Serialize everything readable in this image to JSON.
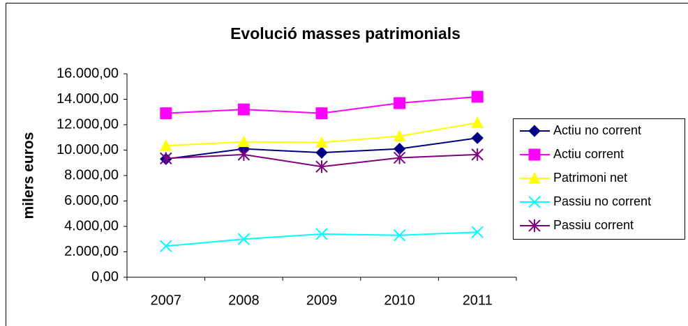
{
  "chart_data": {
    "type": "line",
    "title": "Evolució masses patrimonials",
    "y_label": "milers euros",
    "categories": [
      "2007",
      "2008",
      "2009",
      "2010",
      "2011"
    ],
    "series": [
      {
        "name": "Actiu no corrent",
        "color": "#000080",
        "marker": "diamond",
        "values": [
          9300,
          10100,
          9800,
          10100,
          10950
        ]
      },
      {
        "name": "Actiu corrent",
        "color": "#ff00ff",
        "marker": "square",
        "values": [
          12900,
          13200,
          12900,
          13700,
          14200
        ]
      },
      {
        "name": "Patrimoni net",
        "color": "#ffff00",
        "marker": "triangle",
        "values": [
          10350,
          10650,
          10600,
          11100,
          12150
        ]
      },
      {
        "name": "Passiu no corrent",
        "color": "#00ffff",
        "marker": "x",
        "values": [
          2450,
          3000,
          3400,
          3300,
          3550
        ]
      },
      {
        "name": "Passiu corrent",
        "color": "#800080",
        "marker": "star",
        "values": [
          9350,
          9650,
          8700,
          9400,
          9650
        ]
      }
    ],
    "ylim": [
      0,
      16000
    ],
    "yticks": [
      {
        "value": 0,
        "label": "0,00"
      },
      {
        "value": 2000,
        "label": "2.000,00"
      },
      {
        "value": 4000,
        "label": "4.000,00"
      },
      {
        "value": 6000,
        "label": "6.000,00"
      },
      {
        "value": 8000,
        "label": "8.000,00"
      },
      {
        "value": 10000,
        "label": "10.000,00"
      },
      {
        "value": 12000,
        "label": "12.000,00"
      },
      {
        "value": 14000,
        "label": "14.000,00"
      },
      {
        "value": 16000,
        "label": "16.000,00"
      }
    ],
    "grid": false,
    "legend": "right"
  }
}
